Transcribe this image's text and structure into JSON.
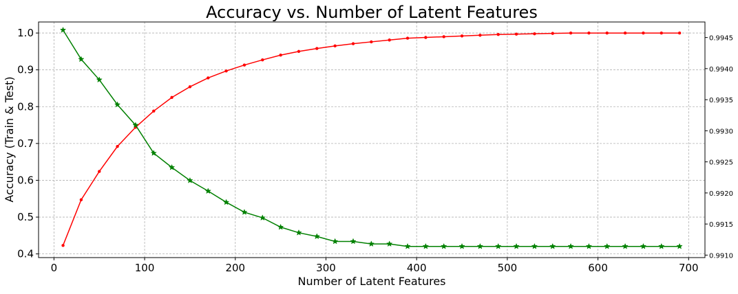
{
  "chart_data": {
    "type": "line",
    "title": "Accuracy vs. Number of Latent Features",
    "xlabel": "Number of Latent Features",
    "ylabel": "Accuracy (Train & Test)",
    "xlim": [
      -17,
      718
    ],
    "ylim": [
      0.39,
      1.03
    ],
    "y2lim": [
      0.99096,
      0.99475
    ],
    "grid": true,
    "x_ticks": [
      0,
      100,
      200,
      300,
      400,
      500,
      600,
      700
    ],
    "y_ticks": [
      0.4,
      0.5,
      0.6,
      0.7,
      0.8,
      0.9,
      1.0
    ],
    "y_tick_labels": [
      "0.4",
      "0.5",
      "0.6",
      "0.7",
      "0.8",
      "0.9",
      "1.0"
    ],
    "y2_ticks": [
      0.991,
      0.9915,
      0.992,
      0.9925,
      0.993,
      0.9935,
      0.994,
      0.9945
    ],
    "y2_tick_labels": [
      "0.9910",
      "0.9915",
      "0.9920",
      "0.9925",
      "0.9930",
      "0.9935",
      "0.9940",
      "0.9945"
    ],
    "x": [
      10,
      30,
      50,
      70,
      90,
      110,
      130,
      150,
      170,
      190,
      210,
      230,
      250,
      270,
      290,
      310,
      330,
      350,
      370,
      390,
      410,
      430,
      450,
      470,
      490,
      510,
      530,
      550,
      570,
      590,
      610,
      630,
      650,
      670,
      690
    ],
    "series": [
      {
        "axis": "left",
        "color": "#ff0000",
        "marker": "point",
        "values": [
          0.423,
          0.547,
          0.624,
          0.692,
          0.744,
          0.788,
          0.825,
          0.854,
          0.878,
          0.897,
          0.913,
          0.927,
          0.94,
          0.95,
          0.958,
          0.965,
          0.971,
          0.976,
          0.981,
          0.986,
          0.988,
          0.99,
          0.992,
          0.994,
          0.996,
          0.997,
          0.998,
          0.999,
          1.0,
          1.0,
          1.0,
          1.0,
          1.0,
          1.0,
          1.0
        ]
      },
      {
        "axis": "right",
        "color": "#008000",
        "marker": "star",
        "values": [
          0.99462,
          0.99415,
          0.99382,
          0.99342,
          0.99309,
          0.99264,
          0.99241,
          0.9922,
          0.99203,
          0.99185,
          0.99169,
          0.9916,
          0.99145,
          0.99136,
          0.9913,
          0.99122,
          0.99122,
          0.99118,
          0.99118,
          0.99114,
          0.99114,
          0.99114,
          0.99114,
          0.99114,
          0.99114,
          0.99114,
          0.99114,
          0.99114,
          0.99114,
          0.99114,
          0.99114,
          0.99114,
          0.99114,
          0.99114,
          0.99114
        ]
      }
    ]
  }
}
